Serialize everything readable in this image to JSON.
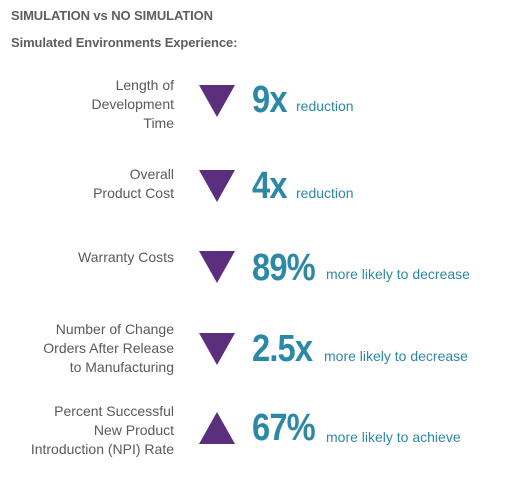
{
  "header": {
    "title": "SIMULATION vs NO SIMULATION",
    "subtitle": "Simulated Environments Experience:"
  },
  "accent_color": "#2d88a6",
  "arrow_color": "#5c2e7e",
  "metrics": [
    {
      "label": "Length of\nDevelopment\nTime",
      "direction": "down",
      "arrow_icon": "down-triangle-icon",
      "value": "9x",
      "note": "reduction"
    },
    {
      "label": "Overall\nProduct Cost",
      "direction": "down",
      "arrow_icon": "down-triangle-icon",
      "value": "4x",
      "note": "reduction"
    },
    {
      "label": "Warranty Costs",
      "direction": "down",
      "arrow_icon": "down-triangle-icon",
      "value": "89%",
      "note": "more likely to decrease"
    },
    {
      "label": "Number of Change\nOrders After Release\nto Manufacturing",
      "direction": "down",
      "arrow_icon": "down-triangle-icon",
      "value": "2.5x",
      "note": "more likely to decrease"
    },
    {
      "label": "Percent Successful\nNew Product\nIntroduction (NPI) Rate",
      "direction": "up",
      "arrow_icon": "up-triangle-icon",
      "value": "67%",
      "note": "more likely to achieve"
    }
  ]
}
